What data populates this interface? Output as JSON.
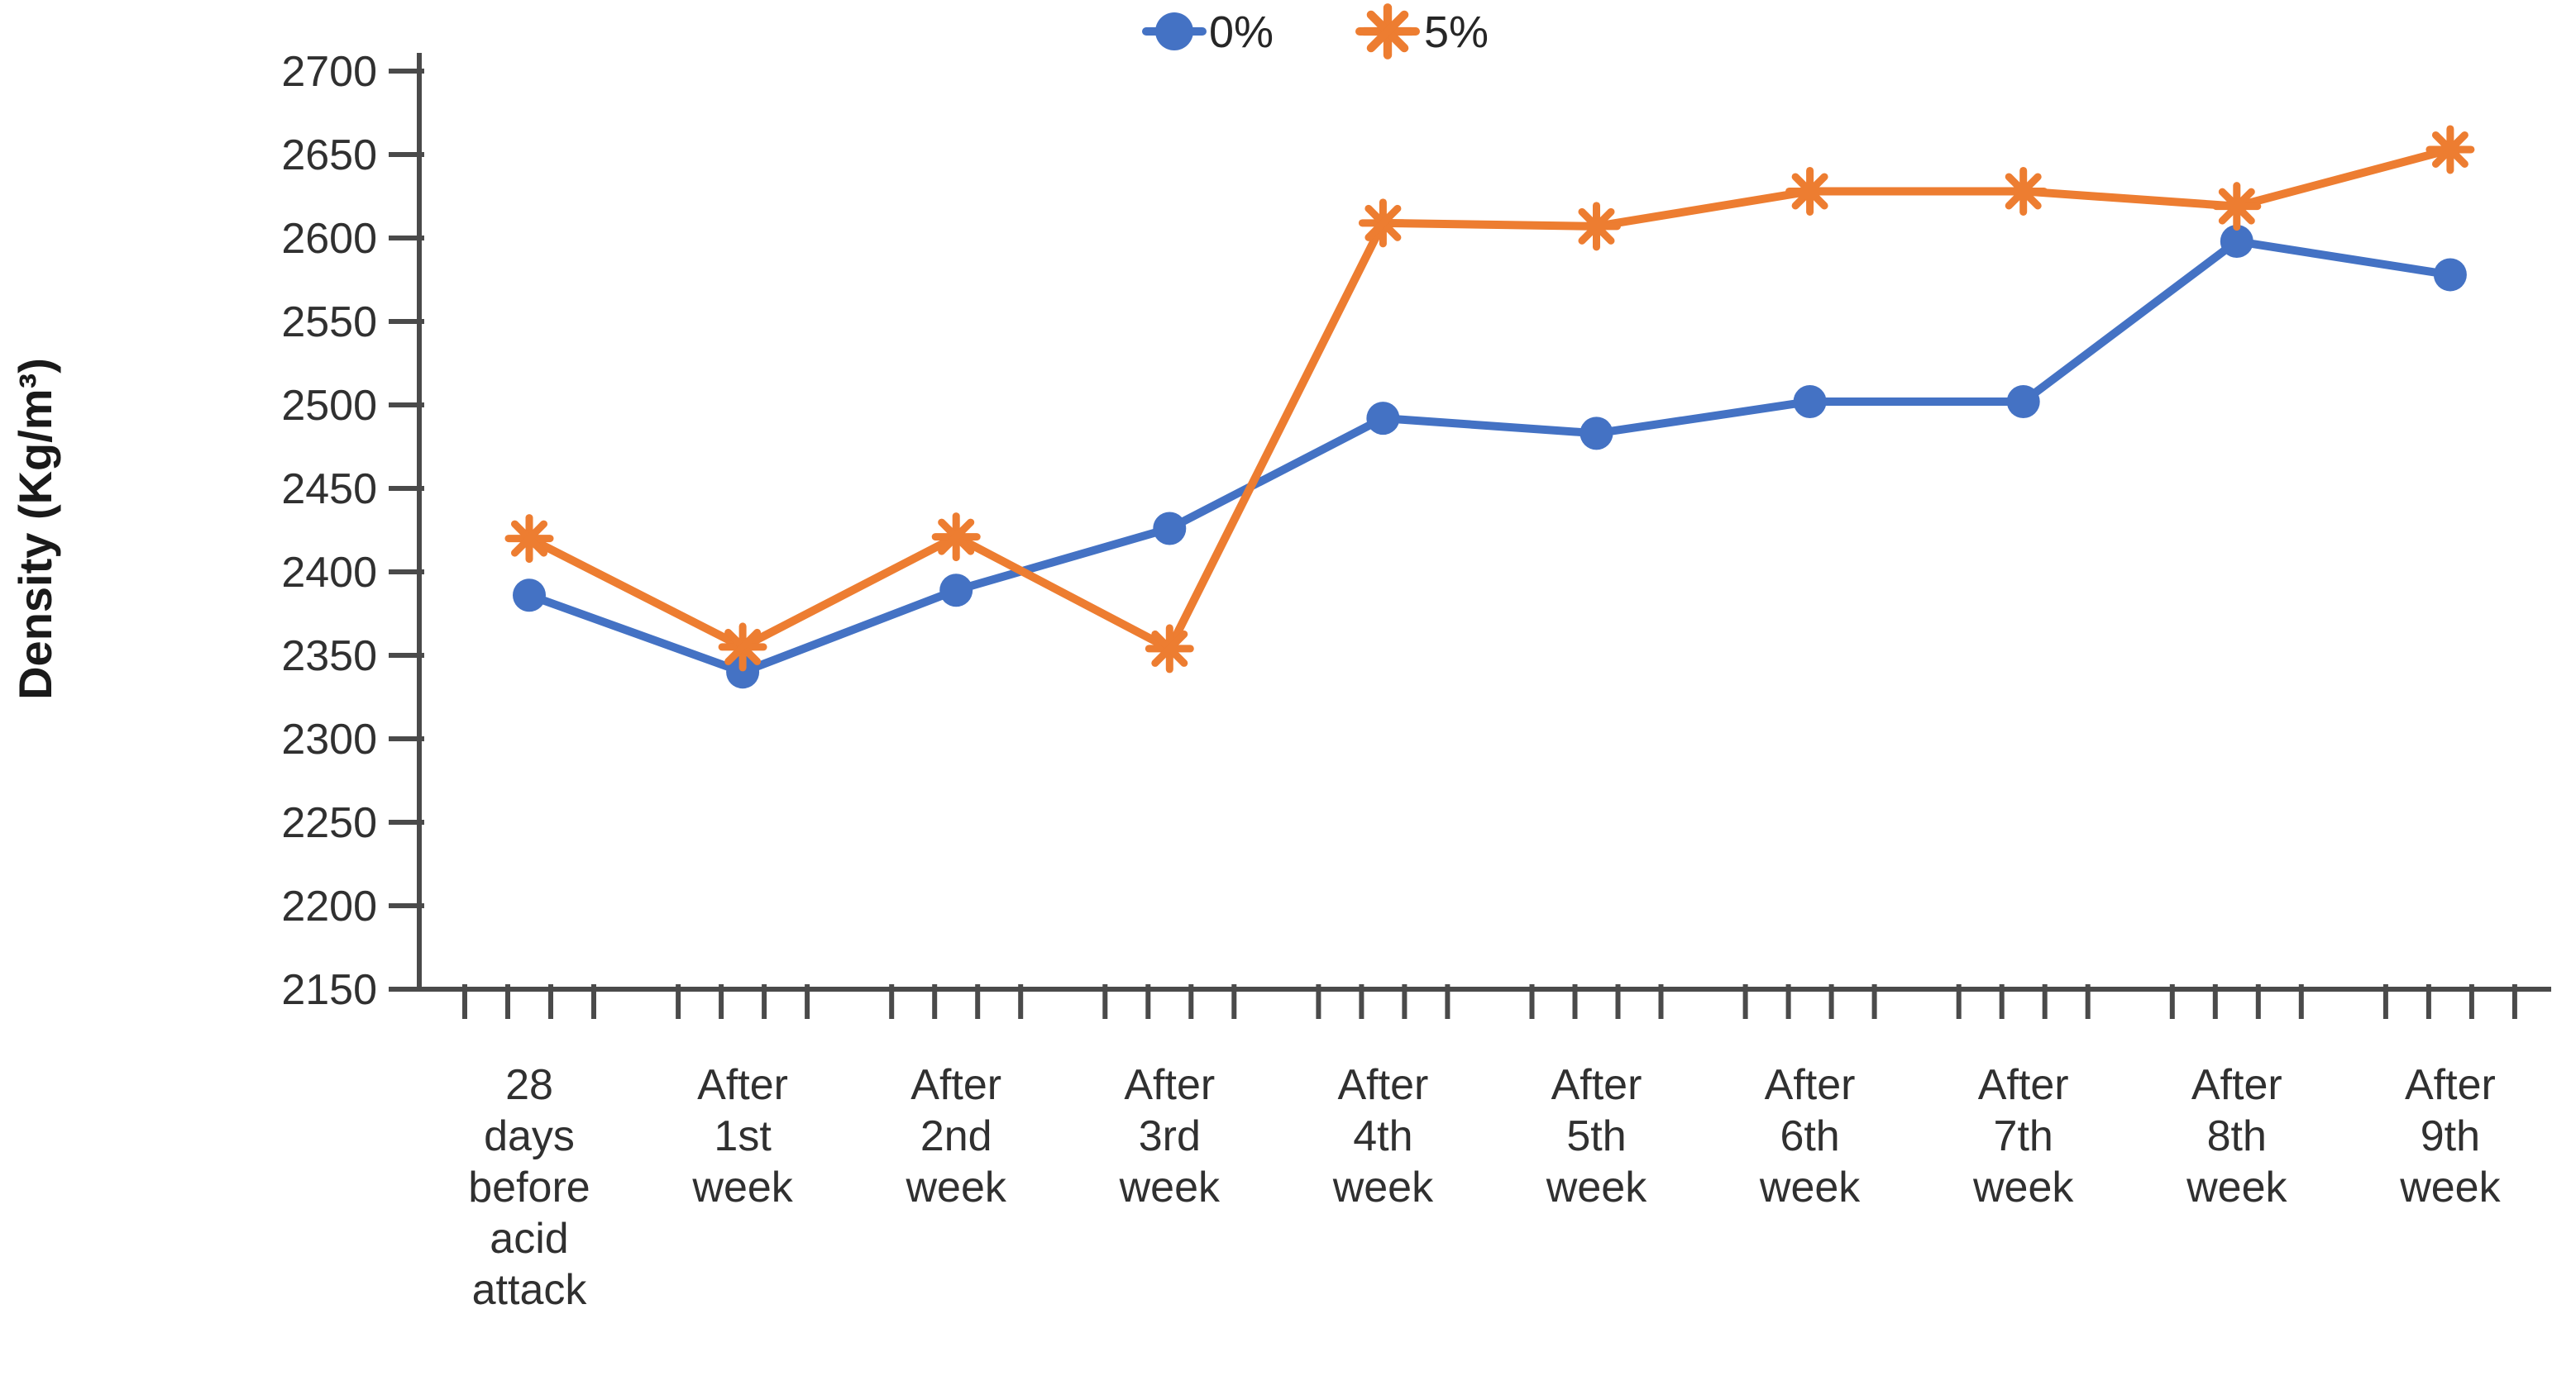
{
  "chart_data": {
    "type": "line",
    "title": "",
    "xlabel": "",
    "ylabel": "Density (Kg/m³)",
    "ylim": [
      2150,
      2700
    ],
    "ytick_step": 50,
    "grid": false,
    "legend_position": "top-center",
    "categories": [
      "28\ndays\nbefore\nacid\nattack",
      "After\n1st\nweek",
      "After\n2nd\nweek",
      "After\n3rd\nweek",
      "After\n4th\nweek",
      "After\n5th\nweek",
      "After\n6th\nweek",
      "After\n7th\nweek",
      "After\n8th\nweek",
      "After\n9th\nweek"
    ],
    "series": [
      {
        "name": "0%",
        "color": "#4472C4",
        "marker": "circle",
        "values": [
          2386,
          2340,
          2389,
          2426,
          2492,
          2483,
          2502,
          2502,
          2598,
          2578
        ]
      },
      {
        "name": "5%",
        "color": "#ED7D31",
        "marker": "asterisk",
        "values": [
          2420,
          2355,
          2421,
          2354,
          2609,
          2607,
          2628,
          2628,
          2619,
          2653
        ]
      }
    ],
    "axis_color": "#4a4a4a",
    "text_color": "#303030"
  }
}
